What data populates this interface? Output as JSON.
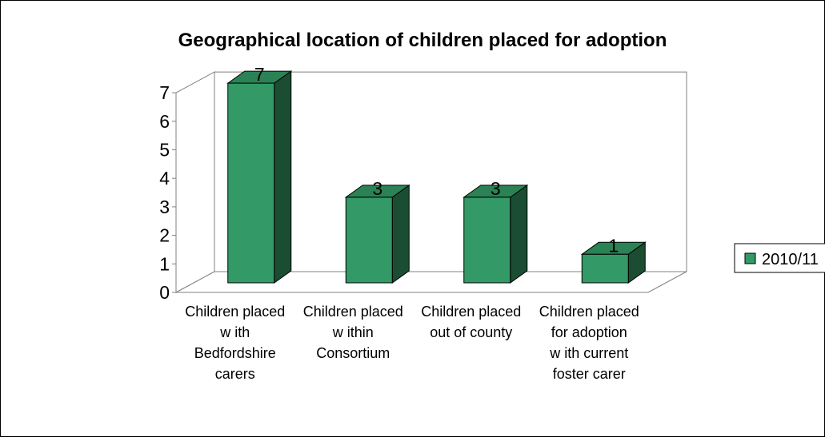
{
  "chart_data": {
    "type": "bar",
    "title": "Geographical location of children placed for adoption",
    "categories": [
      [
        "Children placed",
        "w ith",
        "Bedfordshire",
        "carers"
      ],
      [
        "Children placed",
        "w ithin",
        "Consortium"
      ],
      [
        "Children placed",
        "out of county"
      ],
      [
        "Children placed",
        "for adoption",
        "w ith current",
        "foster carer"
      ]
    ],
    "series": [
      {
        "name": "2010/11",
        "values": [
          7,
          3,
          3,
          1
        ]
      }
    ],
    "ylim": [
      0,
      7
    ],
    "yticks": [
      0,
      1,
      2,
      3,
      4,
      5,
      6,
      7
    ],
    "xlabel": "",
    "ylabel": "",
    "grid": false,
    "legend": "right",
    "style": "3d",
    "colors": {
      "bar_front": "#339966",
      "bar_top": "#2b8255",
      "bar_side": "#1b4d33",
      "outline": "#000000",
      "axis": "#808080"
    }
  }
}
